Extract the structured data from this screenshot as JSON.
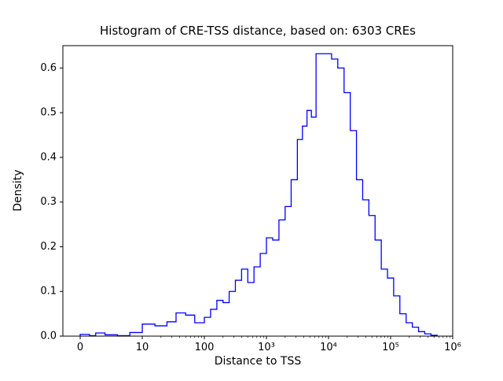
{
  "chart_data": {
    "type": "bar",
    "subtype": "step-histogram",
    "title": "Histogram of CRE-TSS distance, based on: 6303 CREs",
    "xlabel": "Distance to TSS",
    "ylabel": "Density",
    "line_color": "#0000ff",
    "grid": false,
    "legend": "none",
    "x_scale": "symlog",
    "x_scale_params": {
      "linthresh": 10,
      "zero_frac": 0.0444,
      "decade_frac": 0.15926
    },
    "ylim": [
      0,
      0.65
    ],
    "xticks": [
      {
        "v": 0,
        "label": "0"
      },
      {
        "v": 10,
        "label": "10"
      },
      {
        "v": 100,
        "label": "100"
      },
      {
        "v": 1000,
        "label": "10³"
      },
      {
        "v": 10000,
        "label": "10⁴"
      },
      {
        "v": 100000,
        "label": "10⁵"
      },
      {
        "v": 1000000,
        "label": "10⁶"
      }
    ],
    "yticks": [
      {
        "v": 0.0,
        "label": "0.0"
      },
      {
        "v": 0.1,
        "label": "0.1"
      },
      {
        "v": 0.2,
        "label": "0.2"
      },
      {
        "v": 0.3,
        "label": "0.3"
      },
      {
        "v": 0.4,
        "label": "0.4"
      },
      {
        "v": 0.5,
        "label": "0.5"
      },
      {
        "v": 0.6,
        "label": "0.6"
      }
    ],
    "bin_edges": [
      0,
      1.5,
      2.5,
      4,
      6,
      8,
      10,
      16,
      25,
      35,
      50,
      70,
      100,
      126,
      159,
      200,
      251,
      316,
      398,
      501,
      631,
      794,
      1000,
      1260,
      1590,
      2000,
      2500,
      3150,
      3800,
      4500,
      5300,
      6300,
      11200,
      14100,
      17800,
      22400,
      28200,
      35500,
      44700,
      56200,
      70800,
      89100,
      112000,
      141000,
      178000,
      224000,
      282000,
      355000,
      447000,
      562000
    ],
    "densities": [
      0.004,
      0.001,
      0.007,
      0.003,
      0.001,
      0.008,
      0.027,
      0.023,
      0.032,
      0.052,
      0.047,
      0.03,
      0.042,
      0.06,
      0.08,
      0.075,
      0.1,
      0.125,
      0.15,
      0.12,
      0.155,
      0.185,
      0.22,
      0.215,
      0.26,
      0.29,
      0.35,
      0.44,
      0.47,
      0.505,
      0.49,
      0.632,
      0.62,
      0.6,
      0.545,
      0.46,
      0.35,
      0.305,
      0.27,
      0.215,
      0.15,
      0.13,
      0.09,
      0.05,
      0.03,
      0.02,
      0.01,
      0.005,
      0.002
    ]
  }
}
